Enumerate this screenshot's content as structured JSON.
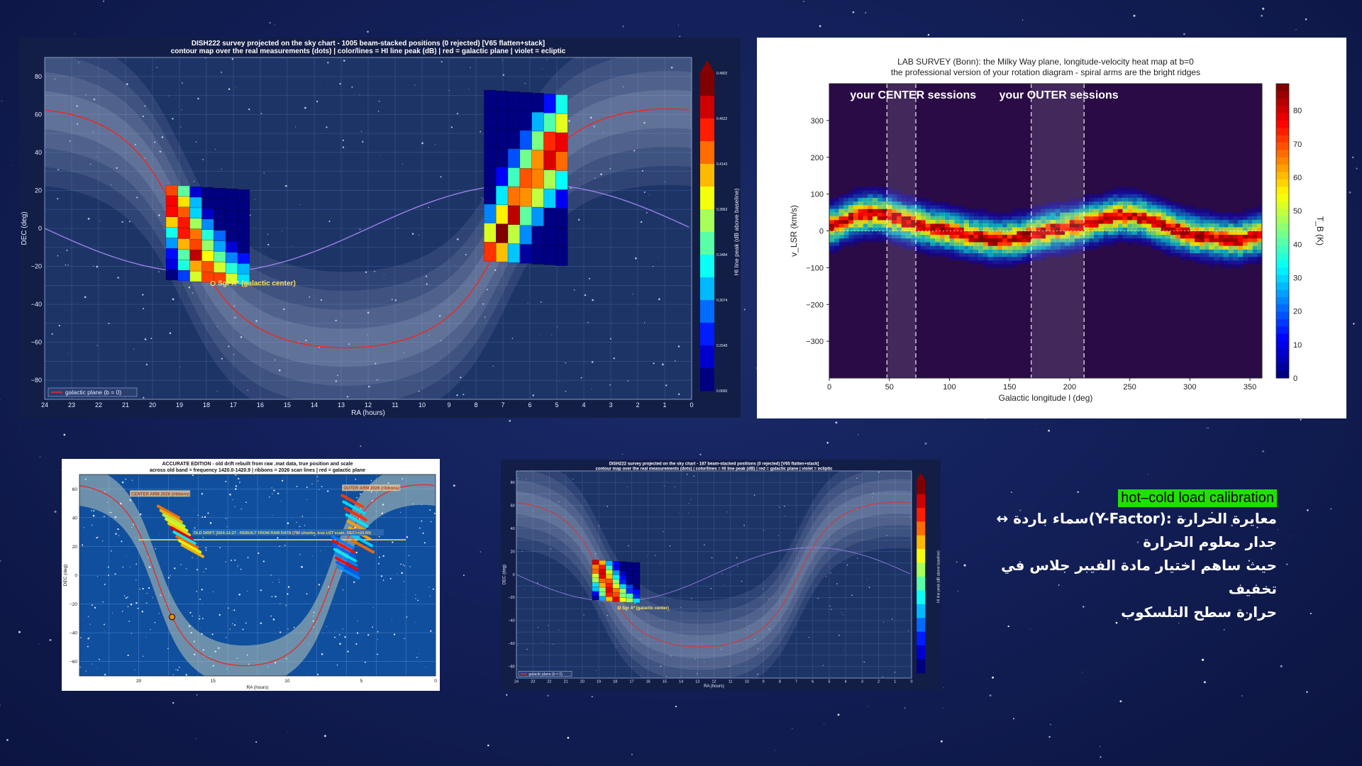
{
  "colors": {
    "background": "#13205a",
    "panel_dark": "#131e46",
    "galactic_plane": "#e0302a",
    "ecliptic": "#9b7fe6",
    "highlight": "#21e000"
  },
  "caption": {
    "highlight": "hot–cold load calibration",
    "lines": [
      "معايرة الحرارة  :(Y-Factor)سماء باردة  ↔",
      "جدار معلوم الحرارة",
      "حيث ساهم اختيار مادة الفيبر جلاس في تخفيف",
      "حرارة سطح التلسكوب"
    ]
  },
  "chart_data": [
    {
      "type": "heatmap",
      "panel": "survey-sky-chart-1005",
      "title": "DISH222 survey projected on the sky chart - 1005 beam-stacked positions (0 rejected) [V65 flatten+stack]",
      "subtitle": "contour map over the real measurements (dots) | color/lines = HI line peak (dB) | red = galactic plane | violet = ecliptic",
      "xlabel": "RA (hours)",
      "ylabel": "DEC (deg)",
      "xlim": [
        24,
        0
      ],
      "ylim": [
        -90,
        90
      ],
      "xticks": [
        "24",
        "23",
        "22",
        "21",
        "20",
        "19",
        "18",
        "17",
        "16",
        "15",
        "14",
        "13",
        "12",
        "11",
        "10",
        "9",
        "8",
        "7",
        "6",
        "5",
        "4",
        "3",
        "2",
        "1",
        "0"
      ],
      "yticks": [
        "80",
        "60",
        "40",
        "20",
        "0",
        "−20",
        "−40",
        "−60",
        "−80"
      ],
      "colorbar_label": "HI line peak (dB above baseline)",
      "colorbar_ticks": [
        "0.4802",
        "0.4622",
        "0.4143",
        "0.3863",
        "0.3484",
        "0.3074",
        "0.2548",
        "0.0665"
      ],
      "legend": "galactic plane (b = 0)",
      "annotation": "Sgr A*  (galactic center)",
      "annotation_ra": 17.76,
      "annotation_dec": -29.0,
      "patches": [
        {
          "name": "center-region",
          "ra": [
            19.5,
            16.4
          ],
          "dec": [
            -30,
            20
          ],
          "peak": 0.42
        },
        {
          "name": "outer-region",
          "ra": [
            7.7,
            4.6
          ],
          "dec": [
            -20,
            70
          ],
          "peak": 0.47
        }
      ]
    },
    {
      "type": "heatmap",
      "panel": "lab-survey-heatmap",
      "title": "LAB SURVEY (Bonn): the Milky Way plane, longitude-velocity heat map at b=0",
      "subtitle": "the professional version of your rotation diagram - spiral arms are the bright ridges",
      "xlabel": "Galactic longitude l (deg)",
      "ylabel": "v_LSR (km/s)",
      "xlim": [
        0,
        360
      ],
      "ylim": [
        -400,
        400
      ],
      "xticks": [
        "0",
        "50",
        "100",
        "150",
        "200",
        "250",
        "300",
        "350"
      ],
      "yticks": [
        "300",
        "200",
        "100",
        "0",
        "−100",
        "−200",
        "−300"
      ],
      "colorbar_label": "T_B (K)",
      "colorbar_ticks": [
        "80",
        "70",
        "60",
        "50",
        "40",
        "30",
        "20",
        "10",
        "0"
      ],
      "clim": [
        0,
        88
      ],
      "sessions": [
        {
          "label": "your CENTER sessions",
          "l_start": 48,
          "l_end": 72
        },
        {
          "label": "your OUTER sessions",
          "l_start": 168,
          "l_end": 212
        }
      ],
      "ridge": {
        "l": [
          0,
          20,
          40,
          60,
          80,
          100,
          120,
          140,
          160,
          180,
          200,
          220,
          240,
          260,
          280,
          300,
          320,
          340,
          358
        ],
        "v": [
          10,
          40,
          50,
          30,
          12,
          0,
          -15,
          -25,
          -18,
          0,
          10,
          25,
          42,
          38,
          12,
          -8,
          -20,
          -25,
          -10
        ]
      }
    },
    {
      "type": "heatmap",
      "panel": "accurate-edition-drift",
      "title": "ACCURATE EDITION - old drift rebuilt from raw .mat data, true position and scale",
      "subtitle": "across old band = frequency 1420.0-1420.9 | ribbons = 2026 scan lines | red = galactic plane",
      "xlabel": "RA (hours)",
      "ylabel": "DEC (deg)",
      "xlim": [
        24,
        0
      ],
      "ylim": [
        -70,
        70
      ],
      "xticks": [
        "20",
        "15",
        "10",
        "5",
        "0"
      ],
      "yticks": [
        "60",
        "40",
        "20",
        "0",
        "−20",
        "−40",
        "−60"
      ],
      "labels": [
        "CENTER ARM 2026 (ribbons)",
        "OUTER ARM 2026 (ribbons)",
        "OLD DRIFT 2024-12-27 - REBUILT FROM RAW DATA (780 chunks, true LST scale, DEC=+24.60)"
      ]
    },
    {
      "type": "heatmap",
      "panel": "survey-sky-chart-187",
      "title": "DISH222 survey projected on the sky chart - 187 beam-stacked positions (0 rejected) [V65 flatten+stack]",
      "subtitle": "contour map over the real measurements (dots) | color/lines = HI line peak (dB) | red = galactic plane | violet = ecliptic",
      "xlabel": "RA (hours)",
      "ylabel": "DEC (deg)",
      "xlim": [
        24,
        0
      ],
      "ylim": [
        -90,
        90
      ],
      "xticks": [
        "24",
        "23",
        "22",
        "21",
        "20",
        "19",
        "18",
        "17",
        "16",
        "15",
        "14",
        "13",
        "12",
        "11",
        "10",
        "9",
        "8",
        "7",
        "6",
        "5",
        "4",
        "3",
        "2",
        "1",
        "0"
      ],
      "yticks": [
        "80",
        "60",
        "40",
        "20",
        "0",
        "−20",
        "−40",
        "−60",
        "−80"
      ],
      "colorbar_label": "HI line peak (dB above baseline)",
      "legend": "galactic plane (b = 0)",
      "annotation": "Sgr A*  (galactic center)",
      "annotation_ra": 17.76,
      "annotation_dec": -29.0,
      "patches": [
        {
          "name": "center-region",
          "ra": [
            19.4,
            16.5
          ],
          "dec": [
            -25,
            10
          ],
          "peak": 0.45
        }
      ]
    }
  ]
}
